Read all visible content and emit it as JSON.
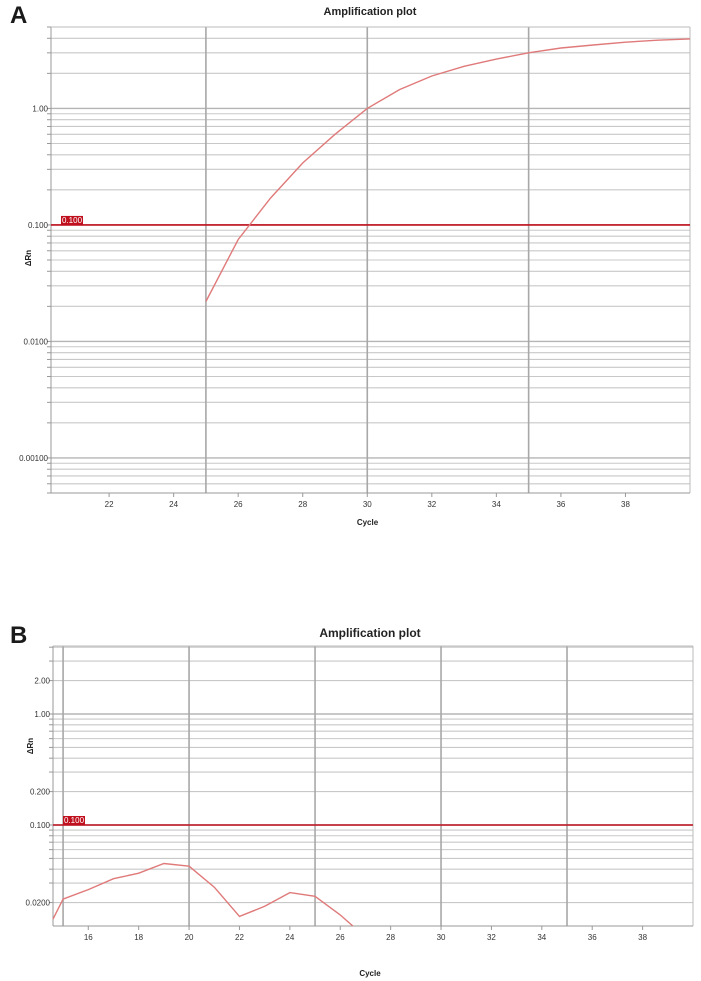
{
  "panels": [
    {
      "letter": "A",
      "title": "Amplification plot"
    },
    {
      "letter": "B",
      "title": "Amplification plot"
    }
  ],
  "chart_data": [
    {
      "type": "line",
      "title": "Amplification plot",
      "xlabel": "Cycle",
      "ylabel": "ΔRn",
      "yscale": "log",
      "xlim": [
        20.2,
        40
      ],
      "ylim": [
        0.0005,
        5
      ],
      "x_ticks": [
        22,
        24,
        26,
        28,
        30,
        32,
        34,
        36,
        38
      ],
      "x_tick_labels": [
        "22",
        "24",
        "26",
        "28",
        "30",
        "32",
        "34",
        "36",
        "38"
      ],
      "y_ticks": [
        1,
        0.1,
        0.01,
        0.001
      ],
      "y_tick_labels": [
        "1.00",
        "0.100",
        "0.0100",
        "0.00100"
      ],
      "x_major_gridlines": [
        25,
        30,
        35
      ],
      "threshold": {
        "value": 0.1,
        "label": "0.100",
        "color": "#c0101e"
      },
      "series": [
        {
          "color": "#e07a7a",
          "x": [
            25,
            26,
            27,
            28,
            29,
            30,
            31,
            32,
            33,
            34,
            35,
            36,
            37,
            38,
            39,
            40
          ],
          "values": [
            0.022,
            0.075,
            0.17,
            0.34,
            0.6,
            1.0,
            1.45,
            1.9,
            2.3,
            2.65,
            3.0,
            3.3,
            3.5,
            3.7,
            3.85,
            3.95
          ]
        }
      ]
    },
    {
      "type": "line",
      "title": "Amplification plot",
      "xlabel": "Cycle",
      "ylabel": "ΔRn",
      "yscale": "log",
      "xlim": [
        14.6,
        40
      ],
      "ylim": [
        0.0123,
        4.1
      ],
      "x_ticks": [
        16,
        18,
        20,
        22,
        24,
        26,
        28,
        30,
        32,
        34,
        36,
        38
      ],
      "x_tick_labels": [
        "16",
        "18",
        "20",
        "22",
        "24",
        "26",
        "28",
        "30",
        "32",
        "34",
        "36",
        "38"
      ],
      "y_ticks": [
        2,
        1,
        0.2,
        0.1,
        0.02
      ],
      "y_tick_labels": [
        "2.00",
        "1.00",
        "0.200",
        "0.100",
        "0.0200"
      ],
      "x_major_gridlines": [
        15,
        20,
        25,
        30,
        35
      ],
      "threshold": {
        "value": 0.1,
        "label": "0.100",
        "color": "#c0101e"
      },
      "series": [
        {
          "color": "#e07a7a",
          "x": [
            14.6,
            15,
            16,
            17,
            18,
            19,
            20,
            21,
            22,
            23,
            24,
            25,
            26,
            26.5
          ],
          "values": [
            0.0142,
            0.0215,
            0.0262,
            0.0328,
            0.0368,
            0.045,
            0.0425,
            0.0275,
            0.015,
            0.0185,
            0.0246,
            0.0228,
            0.0155,
            0.0123
          ]
        }
      ]
    }
  ]
}
